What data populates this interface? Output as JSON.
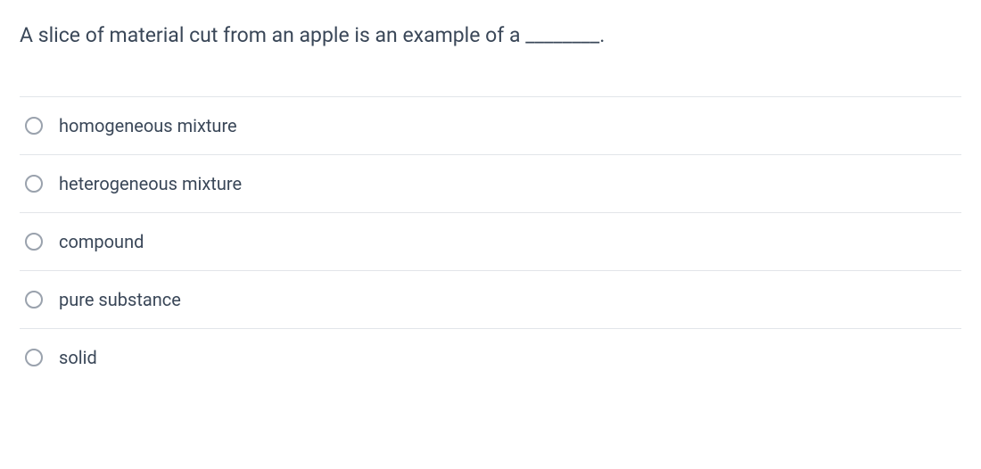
{
  "question": {
    "text": "A slice of material cut from an apple is an example of a ________."
  },
  "options": [
    {
      "label": "homogeneous mixture"
    },
    {
      "label": "heterogeneous mixture"
    },
    {
      "label": "compound"
    },
    {
      "label": "pure substance"
    },
    {
      "label": "solid"
    }
  ],
  "colors": {
    "text_primary": "#3a4758",
    "border": "#e2e5e9",
    "radio_border": "#9aa2ad",
    "background": "#ffffff"
  },
  "typography": {
    "question_fontsize": 23,
    "option_fontsize": 20
  }
}
